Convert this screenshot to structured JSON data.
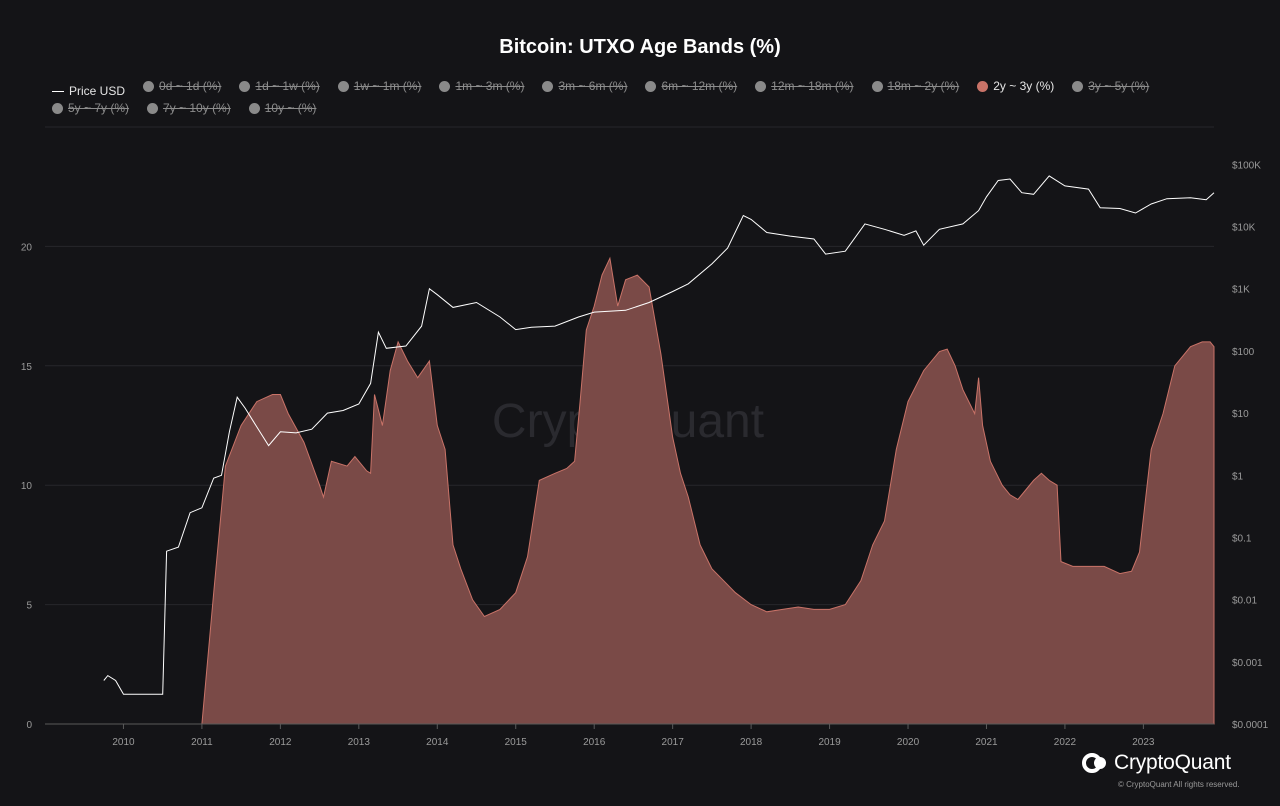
{
  "chart_data": {
    "type": "area",
    "title": "Bitcoin: UTXO Age Bands (%)",
    "watermark": "CryptoQuant",
    "legend": [
      {
        "label": "Price USD",
        "state": "on",
        "kind": "line"
      },
      {
        "label": "0d ~ 1d (%)",
        "state": "off",
        "kind": "dot"
      },
      {
        "label": "1d ~ 1w (%)",
        "state": "off",
        "kind": "dot"
      },
      {
        "label": "1w ~ 1m (%)",
        "state": "off",
        "kind": "dot"
      },
      {
        "label": "1m ~ 3m (%)",
        "state": "off",
        "kind": "dot"
      },
      {
        "label": "3m ~ 6m (%)",
        "state": "off",
        "kind": "dot"
      },
      {
        "label": "6m ~ 12m (%)",
        "state": "off",
        "kind": "dot"
      },
      {
        "label": "12m ~ 18m (%)",
        "state": "off",
        "kind": "dot"
      },
      {
        "label": "18m ~ 2y (%)",
        "state": "off",
        "kind": "dot"
      },
      {
        "label": "2y ~ 3y (%)",
        "state": "on",
        "kind": "dot"
      },
      {
        "label": "3y ~ 5y (%)",
        "state": "off",
        "kind": "dot"
      },
      {
        "label": "5y ~ 7y (%)",
        "state": "off",
        "kind": "dot"
      },
      {
        "label": "7y ~ 10y (%)",
        "state": "off",
        "kind": "dot"
      },
      {
        "label": "10y ~ (%)",
        "state": "off",
        "kind": "dot"
      }
    ],
    "x_ticks": [
      "2010",
      "2011",
      "2012",
      "2013",
      "2014",
      "2015",
      "2016",
      "2017",
      "2018",
      "2019",
      "2020",
      "2021",
      "2022",
      "2023"
    ],
    "y_left_ticks": [
      "0",
      "5",
      "10",
      "15",
      "20"
    ],
    "y_left_range": [
      0,
      25
    ],
    "y_right_ticks": [
      "$0.0001",
      "$0.001",
      "$0.01",
      "$0.1",
      "$1",
      "$10",
      "$100",
      "$1K",
      "$10K",
      "$100K"
    ],
    "y_right_range_log10": [
      -4,
      5.6
    ],
    "x_range": [
      2009.0,
      2023.9
    ],
    "colors": {
      "band": "#c97368",
      "band_fill": "#7a4a47",
      "price": "#ffffff",
      "grid": "#26262b"
    },
    "series": [
      {
        "name": "2y ~ 3y (%)",
        "axis": "left",
        "points": [
          [
            2009.0,
            0
          ],
          [
            2011.0,
            0
          ],
          [
            2011.15,
            5.5
          ],
          [
            2011.3,
            10.8
          ],
          [
            2011.5,
            12.5
          ],
          [
            2011.7,
            13.5
          ],
          [
            2011.9,
            13.8
          ],
          [
            2012.0,
            13.8
          ],
          [
            2012.1,
            13.0
          ],
          [
            2012.3,
            11.8
          ],
          [
            2012.5,
            10.0
          ],
          [
            2012.55,
            9.5
          ],
          [
            2012.65,
            11.0
          ],
          [
            2012.85,
            10.8
          ],
          [
            2012.95,
            11.2
          ],
          [
            2013.1,
            10.6
          ],
          [
            2013.15,
            10.5
          ],
          [
            2013.2,
            13.8
          ],
          [
            2013.3,
            12.5
          ],
          [
            2013.4,
            14.8
          ],
          [
            2013.5,
            16.0
          ],
          [
            2013.62,
            15.2
          ],
          [
            2013.75,
            14.5
          ],
          [
            2013.9,
            15.2
          ],
          [
            2014.0,
            12.5
          ],
          [
            2014.1,
            11.5
          ],
          [
            2014.2,
            7.5
          ],
          [
            2014.3,
            6.5
          ],
          [
            2014.45,
            5.2
          ],
          [
            2014.6,
            4.5
          ],
          [
            2014.8,
            4.8
          ],
          [
            2015.0,
            5.5
          ],
          [
            2015.15,
            7.0
          ],
          [
            2015.3,
            10.2
          ],
          [
            2015.5,
            10.5
          ],
          [
            2015.65,
            10.7
          ],
          [
            2015.75,
            11.0
          ],
          [
            2015.82,
            13.5
          ],
          [
            2015.9,
            16.5
          ],
          [
            2016.0,
            17.5
          ],
          [
            2016.1,
            18.8
          ],
          [
            2016.2,
            19.5
          ],
          [
            2016.3,
            17.5
          ],
          [
            2016.4,
            18.6
          ],
          [
            2016.55,
            18.8
          ],
          [
            2016.7,
            18.3
          ],
          [
            2016.85,
            15.5
          ],
          [
            2017.0,
            12.0
          ],
          [
            2017.1,
            10.5
          ],
          [
            2017.2,
            9.5
          ],
          [
            2017.35,
            7.5
          ],
          [
            2017.5,
            6.5
          ],
          [
            2017.65,
            6.0
          ],
          [
            2017.8,
            5.5
          ],
          [
            2018.0,
            5.0
          ],
          [
            2018.2,
            4.7
          ],
          [
            2018.4,
            4.8
          ],
          [
            2018.6,
            4.9
          ],
          [
            2018.8,
            4.8
          ],
          [
            2019.0,
            4.8
          ],
          [
            2019.2,
            5.0
          ],
          [
            2019.4,
            6.0
          ],
          [
            2019.55,
            7.5
          ],
          [
            2019.7,
            8.5
          ],
          [
            2019.85,
            11.5
          ],
          [
            2020.0,
            13.5
          ],
          [
            2020.2,
            14.8
          ],
          [
            2020.4,
            15.6
          ],
          [
            2020.5,
            15.7
          ],
          [
            2020.6,
            15.0
          ],
          [
            2020.7,
            14.0
          ],
          [
            2020.85,
            13.0
          ],
          [
            2020.9,
            14.5
          ],
          [
            2020.95,
            12.5
          ],
          [
            2021.05,
            11.0
          ],
          [
            2021.2,
            10.0
          ],
          [
            2021.3,
            9.6
          ],
          [
            2021.4,
            9.4
          ],
          [
            2021.5,
            9.8
          ],
          [
            2021.6,
            10.2
          ],
          [
            2021.7,
            10.5
          ],
          [
            2021.8,
            10.2
          ],
          [
            2021.9,
            10.0
          ],
          [
            2021.95,
            6.8
          ],
          [
            2022.1,
            6.6
          ],
          [
            2022.3,
            6.6
          ],
          [
            2022.5,
            6.6
          ],
          [
            2022.7,
            6.3
          ],
          [
            2022.85,
            6.4
          ],
          [
            2022.95,
            7.2
          ],
          [
            2023.1,
            11.5
          ],
          [
            2023.25,
            13.0
          ],
          [
            2023.4,
            15.0
          ],
          [
            2023.6,
            15.8
          ],
          [
            2023.75,
            16.0
          ],
          [
            2023.85,
            16.0
          ],
          [
            2023.9,
            15.8
          ]
        ]
      },
      {
        "name": "Price USD",
        "axis": "right",
        "points": [
          [
            2009.75,
            0.0005
          ],
          [
            2009.8,
            0.0006
          ],
          [
            2009.9,
            0.0005
          ],
          [
            2010.0,
            0.0003
          ],
          [
            2010.5,
            0.0003
          ],
          [
            2010.55,
            0.06
          ],
          [
            2010.7,
            0.07
          ],
          [
            2010.85,
            0.25
          ],
          [
            2011.0,
            0.3
          ],
          [
            2011.15,
            0.9
          ],
          [
            2011.25,
            1.0
          ],
          [
            2011.35,
            5
          ],
          [
            2011.45,
            18
          ],
          [
            2011.55,
            12
          ],
          [
            2011.7,
            6
          ],
          [
            2011.85,
            3
          ],
          [
            2012.0,
            5
          ],
          [
            2012.2,
            4.8
          ],
          [
            2012.4,
            5.5
          ],
          [
            2012.6,
            10
          ],
          [
            2012.8,
            11
          ],
          [
            2013.0,
            14
          ],
          [
            2013.15,
            30
          ],
          [
            2013.25,
            200
          ],
          [
            2013.35,
            110
          ],
          [
            2013.6,
            120
          ],
          [
            2013.8,
            250
          ],
          [
            2013.9,
            1000
          ],
          [
            2014.0,
            800
          ],
          [
            2014.2,
            500
          ],
          [
            2014.5,
            600
          ],
          [
            2014.8,
            350
          ],
          [
            2015.0,
            220
          ],
          [
            2015.2,
            240
          ],
          [
            2015.5,
            250
          ],
          [
            2015.8,
            350
          ],
          [
            2016.0,
            420
          ],
          [
            2016.4,
            450
          ],
          [
            2016.7,
            600
          ],
          [
            2017.0,
            900
          ],
          [
            2017.2,
            1200
          ],
          [
            2017.5,
            2500
          ],
          [
            2017.7,
            4500
          ],
          [
            2017.9,
            15000
          ],
          [
            2018.0,
            13000
          ],
          [
            2018.2,
            8000
          ],
          [
            2018.5,
            7000
          ],
          [
            2018.8,
            6300
          ],
          [
            2018.95,
            3600
          ],
          [
            2019.2,
            4000
          ],
          [
            2019.45,
            11000
          ],
          [
            2019.7,
            9000
          ],
          [
            2019.95,
            7200
          ],
          [
            2020.1,
            8500
          ],
          [
            2020.2,
            5000
          ],
          [
            2020.4,
            9000
          ],
          [
            2020.7,
            11000
          ],
          [
            2020.9,
            18000
          ],
          [
            2021.0,
            30000
          ],
          [
            2021.15,
            55000
          ],
          [
            2021.3,
            58000
          ],
          [
            2021.45,
            35000
          ],
          [
            2021.6,
            33000
          ],
          [
            2021.8,
            65000
          ],
          [
            2022.0,
            45000
          ],
          [
            2022.3,
            40000
          ],
          [
            2022.45,
            20000
          ],
          [
            2022.7,
            19500
          ],
          [
            2022.9,
            16500
          ],
          [
            2023.1,
            23000
          ],
          [
            2023.3,
            28000
          ],
          [
            2023.6,
            29000
          ],
          [
            2023.8,
            27000
          ],
          [
            2023.9,
            35000
          ]
        ]
      }
    ]
  },
  "branding": {
    "logo_text": "CryptoQuant",
    "copyright": "© CryptoQuant All rights reserved."
  }
}
